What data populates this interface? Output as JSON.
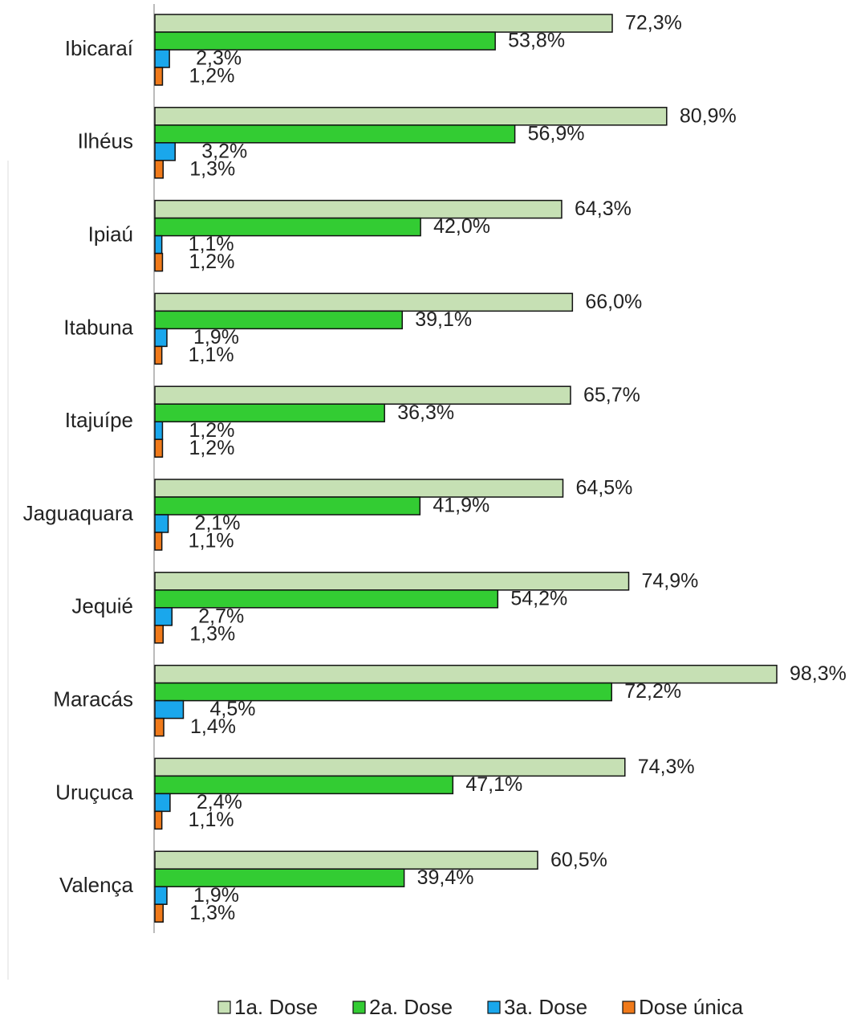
{
  "chart_data": {
    "type": "hbar",
    "categories": [
      "Ibicaraí",
      "Ilhéus",
      "Ipiaú",
      "Itabuna",
      "Itajuípe",
      "Jaguaquara",
      "Jequié",
      "Maracás",
      "Uruçuca",
      "Valença"
    ],
    "series": [
      {
        "name": "1a. Dose",
        "color": "#c6e0b4",
        "values": [
          72.3,
          80.9,
          64.3,
          66.0,
          65.7,
          64.5,
          74.9,
          98.3,
          74.3,
          60.5
        ],
        "value_labels": [
          "72,3%",
          "80,9%",
          "64,3%",
          "66,0%",
          "65,7%",
          "64,5%",
          "74,9%",
          "98,3%",
          "74,3%",
          "60,5%"
        ]
      },
      {
        "name": "2a. Dose",
        "color": "#33cc33",
        "values": [
          53.8,
          56.9,
          42.0,
          39.1,
          36.3,
          41.9,
          54.2,
          72.2,
          47.1,
          39.4
        ],
        "value_labels": [
          "53,8%",
          "56,9%",
          "42,0%",
          "39,1%",
          "36,3%",
          "41,9%",
          "54,2%",
          "72,2%",
          "47,1%",
          "39,4%"
        ]
      },
      {
        "name": "3a. Dose",
        "color": "#1aa7ec",
        "values": [
          2.3,
          3.2,
          1.1,
          1.9,
          1.2,
          2.1,
          2.7,
          4.5,
          2.4,
          1.9
        ],
        "value_labels": [
          "2,3%",
          "3,2%",
          "1,1%",
          "1,9%",
          "1,2%",
          "2,1%",
          "2,7%",
          "4,5%",
          "2,4%",
          "1,9%"
        ]
      },
      {
        "name": "Dose única",
        "color": "#f07a1a",
        "values": [
          1.2,
          1.3,
          1.2,
          1.1,
          1.2,
          1.1,
          1.3,
          1.4,
          1.1,
          1.3
        ],
        "value_labels": [
          "1,2%",
          "1,3%",
          "1,2%",
          "1,1%",
          "1,2%",
          "1,1%",
          "1,3%",
          "1,4%",
          "1,1%",
          "1,3%"
        ]
      }
    ],
    "legend": "bottom"
  }
}
